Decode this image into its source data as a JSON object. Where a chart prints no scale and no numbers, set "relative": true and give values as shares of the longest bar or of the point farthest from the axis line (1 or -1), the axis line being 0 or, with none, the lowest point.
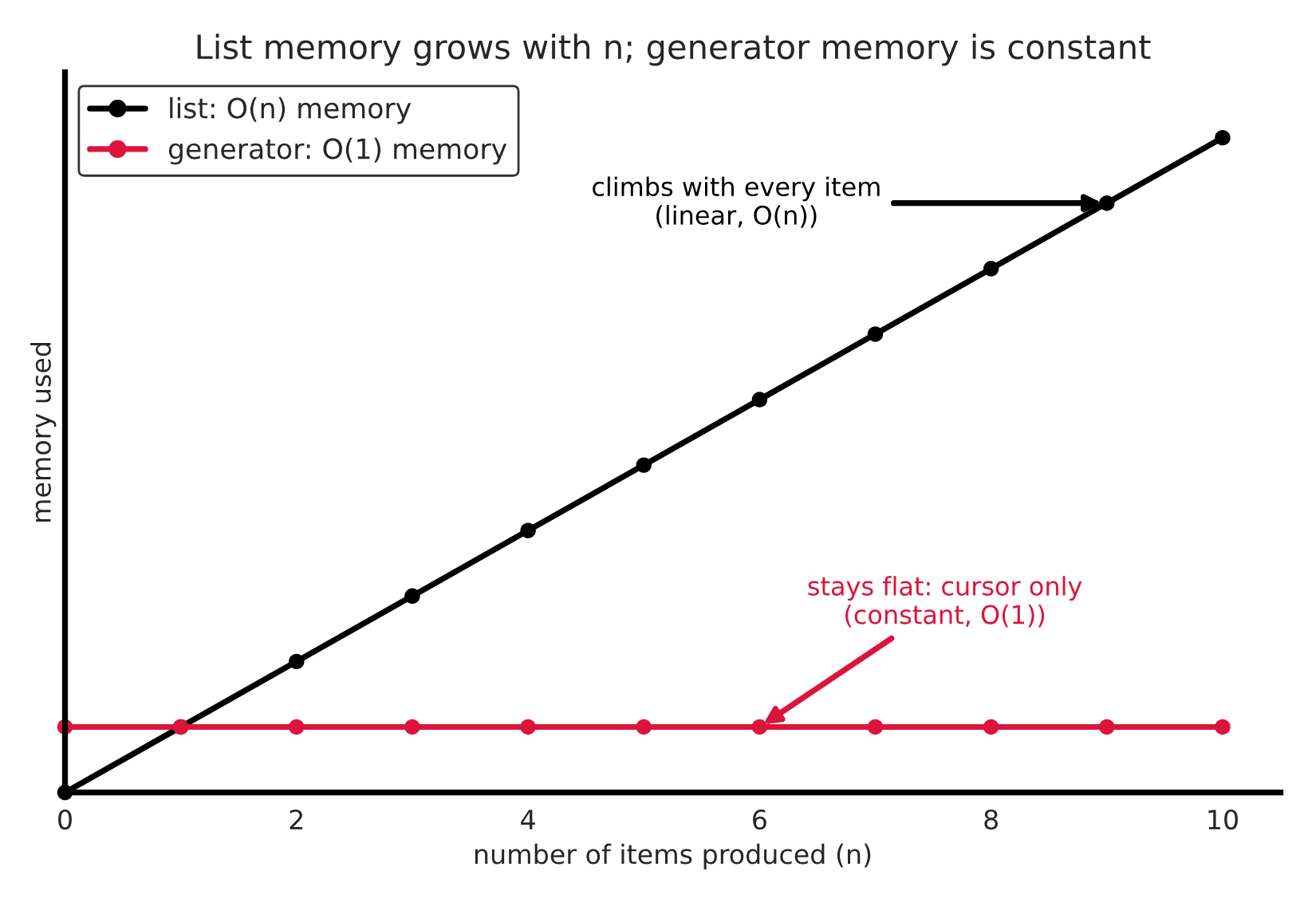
{
  "chart_data": {
    "type": "line",
    "title": "List memory grows with n; generator memory is constant",
    "xlabel": "number of items produced (n)",
    "ylabel": "memory used",
    "relative": true,
    "x": [
      0,
      1,
      2,
      3,
      4,
      5,
      6,
      7,
      8,
      9,
      10
    ],
    "xlim": [
      0,
      10.5
    ],
    "xticks": [
      0,
      2,
      4,
      6,
      8,
      10
    ],
    "series": [
      {
        "name": "list: O(n) memory",
        "color": "#000000",
        "values": [
          0,
          0.1,
          0.2,
          0.3,
          0.4,
          0.5,
          0.6,
          0.7,
          0.8,
          0.9,
          1
        ]
      },
      {
        "name": "generator: O(1) memory",
        "color": "#dc143c",
        "values": [
          0.1,
          0.1,
          0.1,
          0.1,
          0.1,
          0.1,
          0.1,
          0.1,
          0.1,
          0.1,
          0.1
        ]
      }
    ],
    "annotations": [
      {
        "text": "climbs with every item\n(linear, O(n))",
        "x": 9,
        "y": 0.9
      },
      {
        "text": "stays flat: cursor only\n(constant, O(1))",
        "x": 6,
        "y": 0.1
      }
    ],
    "marker": "circle",
    "line_style": "solid",
    "legend": "top left",
    "grid": false
  }
}
